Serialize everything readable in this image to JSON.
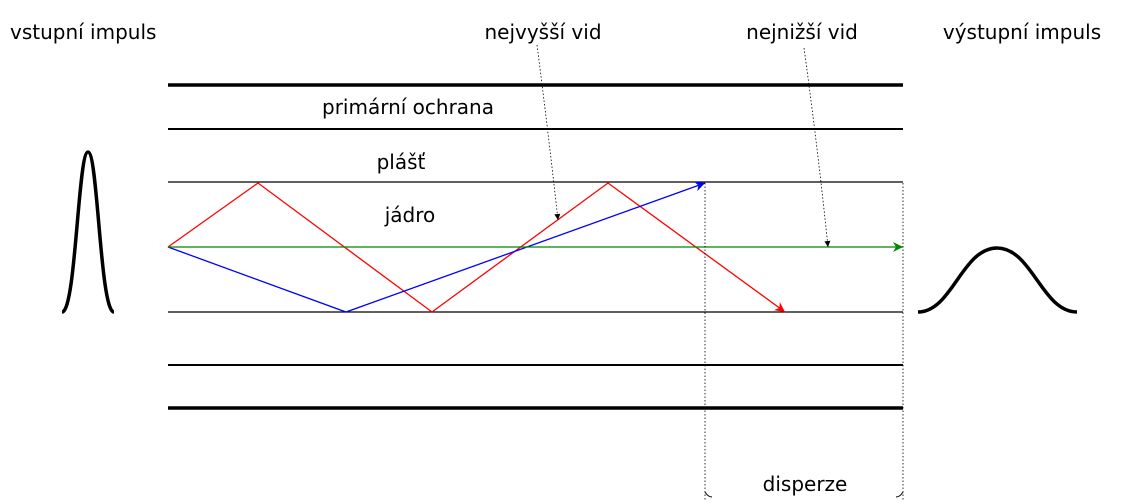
{
  "labels": {
    "input": "vstupní impuls",
    "highest_mode": "nejvyšší vid",
    "lowest_mode": "nejnižší vid",
    "output": "výstupní impuls",
    "primary_coating": "primární ochrana",
    "cladding": "plášť",
    "core": "jádro",
    "dispersion": "disperze"
  }
}
